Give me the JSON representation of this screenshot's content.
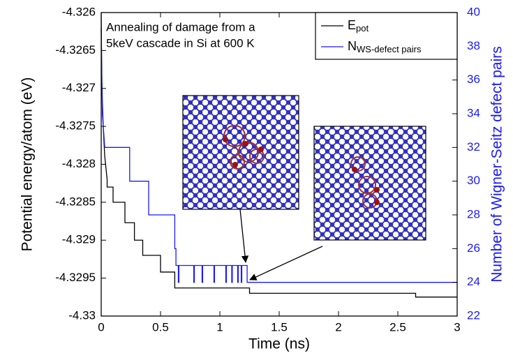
{
  "chart_data": {
    "type": "line",
    "annotation": [
      "Annealing of damage from a",
      "5keV cascade in Si at 600 K"
    ],
    "xlabel": "Time (ns)",
    "ylabel": "Potential energy/atom (eV)",
    "y2label": "Number of Wigner-Seitz defect pairs",
    "xlim": [
      0,
      3
    ],
    "xticks": [
      0,
      0.5,
      1,
      1.5,
      2,
      2.5,
      3
    ],
    "ylim": [
      -4.33,
      -4.326
    ],
    "yticks": [
      -4.33,
      -4.3295,
      -4.329,
      -4.3285,
      -4.328,
      -4.3275,
      -4.327,
      -4.3265,
      -4.326
    ],
    "y2lim": [
      22,
      40
    ],
    "y2ticks": [
      22,
      24,
      26,
      28,
      30,
      32,
      34,
      36,
      38,
      40
    ],
    "legend": "upper right",
    "series": [
      {
        "name": "E",
        "name_subscript": "pot",
        "color": "#000000",
        "x": [
          0,
          0.005,
          0.01,
          0.02,
          0.03,
          0.05,
          0.05,
          0.1,
          0.1,
          0.2,
          0.2,
          0.28,
          0.28,
          0.35,
          0.35,
          0.5,
          0.5,
          0.62,
          0.62,
          1.25,
          1.25,
          2.65,
          2.65,
          3
        ],
        "values": [
          -4.3262,
          -4.3268,
          -4.3272,
          -4.3276,
          -4.3279,
          -4.3282,
          -4.3283,
          -4.3283,
          -4.3285,
          -4.3285,
          -4.32877,
          -4.32877,
          -4.329,
          -4.329,
          -4.3292,
          -4.3292,
          -4.32942,
          -4.32942,
          -4.32963,
          -4.32963,
          -4.3297,
          -4.3297,
          -4.32975,
          -4.32975
        ]
      },
      {
        "name": "N",
        "name_subscript": "WS-defect pairs",
        "color": "#1a1aff",
        "axis": "y2",
        "x": [
          0,
          0.005,
          0.01,
          0.02,
          0.03,
          0.24,
          0.24,
          0.4,
          0.4,
          0.62,
          0.62,
          0.63,
          0.63,
          0.65,
          0.65,
          0.655,
          0.655,
          0.78,
          0.78,
          0.785,
          0.785,
          0.85,
          0.85,
          0.855,
          0.855,
          0.95,
          0.95,
          0.955,
          0.955,
          1.05,
          1.05,
          1.055,
          1.055,
          1.1,
          1.1,
          1.105,
          1.105,
          1.15,
          1.15,
          1.155,
          1.155,
          1.18,
          1.18,
          1.185,
          1.185,
          1.23,
          1.23,
          3
        ],
        "values": [
          40,
          36,
          34,
          33,
          32,
          32,
          30,
          30,
          28,
          28,
          26,
          26,
          25,
          25,
          24,
          24,
          25,
          25,
          24,
          24,
          25,
          25,
          24,
          24,
          25,
          25,
          24,
          24,
          25,
          25,
          24,
          24,
          25,
          25,
          24,
          24,
          25,
          25,
          24,
          24,
          25,
          25,
          24,
          24,
          25,
          25,
          24,
          24
        ]
      }
    ]
  }
}
